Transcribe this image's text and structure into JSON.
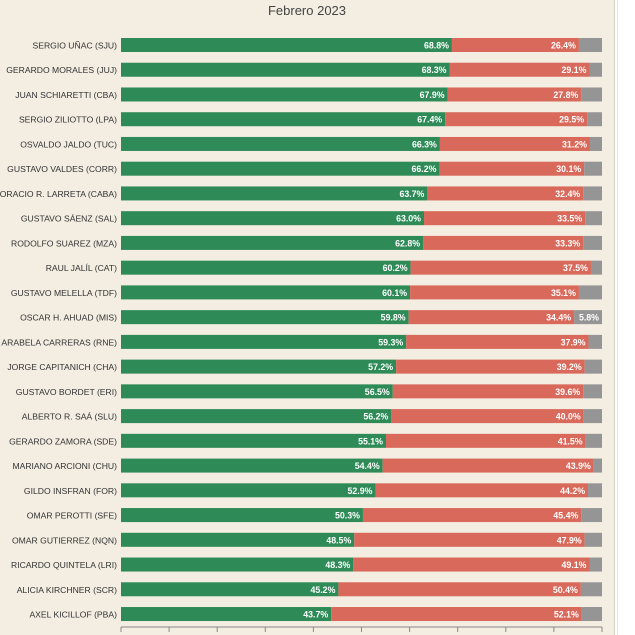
{
  "chart_data": {
    "type": "bar",
    "stacked": true,
    "orientation": "horizontal",
    "title": "Febrero 2023",
    "categories": [
      "SERGIO UÑAC (SJU)",
      "GERARDO MORALES (JUJ)",
      "JUAN SCHIARETTI (CBA)",
      "SERGIO ZILIOTTO (LPA)",
      "OSVALDO JALDO (TUC)",
      "GUSTAVO VALDES (CORR)",
      "HORACIO R. LARRETA (CABA)",
      "GUSTAVO SÁENZ (SAL)",
      "RODOLFO SUAREZ (MZA)",
      "RAUL JALÍL (CAT)",
      "GUSTAVO MELELLA (TDF)",
      "OSCAR H. AHUAD (MIS)",
      "ARABELA CARRERAS (RNE)",
      "JORGE CAPITANICH (CHA)",
      "GUSTAVO BORDET (ERI)",
      "ALBERTO R. SAÁ (SLU)",
      "GERARDO ZAMORA (SDE)",
      "MARIANO ARCIONI (CHU)",
      "GILDO INSFRAN (FOR)",
      "OMAR PEROTTI (SFE)",
      "OMAR GUTIERREZ (NQN)",
      "RICARDO QUINTELA (LRI)",
      "ALICIA KIRCHNER (SCR)",
      "AXEL KICILLOF (PBA)"
    ],
    "series": [
      {
        "color": "#2e8b57",
        "values": [
          68.8,
          68.3,
          67.9,
          67.4,
          66.3,
          66.2,
          63.7,
          63.0,
          62.8,
          60.2,
          60.1,
          59.8,
          59.3,
          57.2,
          56.5,
          56.2,
          55.1,
          54.4,
          52.9,
          50.3,
          48.5,
          48.3,
          45.2,
          43.7
        ],
        "labels": [
          "68.8%",
          "68.3%",
          "67.9%",
          "67.4%",
          "66.3%",
          "66.2%",
          "63.7%",
          "63.0%",
          "62.8%",
          "60.2%",
          "60.1%",
          "59.8%",
          "59.3%",
          "57.2%",
          "56.5%",
          "56.2%",
          "55.1%",
          "54.4%",
          "52.9%",
          "50.3%",
          "48.5%",
          "48.3%",
          "45.2%",
          "43.7%"
        ]
      },
      {
        "color": "#d9695a",
        "values": [
          26.4,
          29.1,
          27.8,
          29.5,
          31.2,
          30.1,
          32.4,
          33.5,
          33.3,
          37.5,
          35.1,
          34.4,
          37.9,
          39.2,
          39.6,
          40.0,
          41.5,
          43.9,
          44.2,
          45.4,
          47.9,
          49.1,
          50.4,
          52.1
        ],
        "labels": [
          "26.4%",
          "29.1%",
          "27.8%",
          "29.5%",
          "31.2%",
          "30.1%",
          "32.4%",
          "33.5%",
          "33.3%",
          "37.5%",
          "35.1%",
          "34.4%",
          "37.9%",
          "39.2%",
          "39.6%",
          "40.0%",
          "41.5%",
          "43.9%",
          "44.2%",
          "45.4%",
          "47.9%",
          "49.1%",
          "50.4%",
          "52.1%"
        ]
      },
      {
        "color": "#959595",
        "values": [
          4.8,
          2.6,
          4.3,
          3.1,
          2.5,
          3.7,
          3.9,
          3.5,
          3.9,
          2.3,
          4.8,
          5.8,
          2.8,
          3.6,
          3.9,
          3.8,
          3.4,
          1.7,
          2.9,
          4.3,
          3.6,
          2.6,
          4.4,
          4.2
        ],
        "labels": [
          "",
          "",
          "",
          "",
          "",
          "",
          "",
          "",
          "",
          "",
          "",
          "5.8%",
          "",
          "",
          "",
          "",
          "",
          "",
          "",
          "",
          "",
          "",
          "",
          ""
        ]
      }
    ],
    "xlim": [
      0,
      100
    ],
    "xlabel": "",
    "ylabel": "",
    "grid": false,
    "legend": "none"
  }
}
